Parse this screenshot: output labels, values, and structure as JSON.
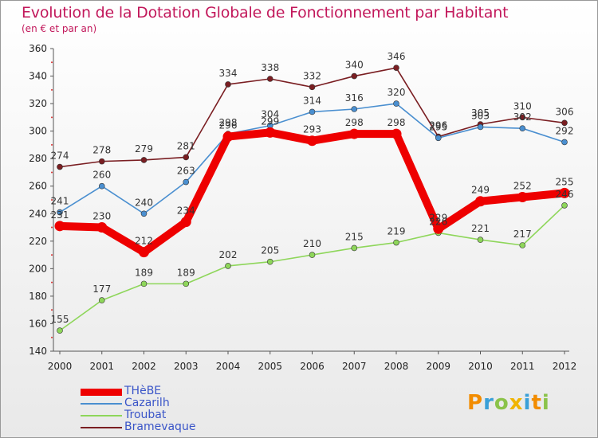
{
  "title": "Evolution de la Dotation Globale de Fonctionnement par Habitant",
  "subtitle": "(en € et par an)",
  "logo": {
    "letters": [
      "P",
      "r",
      "o",
      "x",
      "i",
      "t",
      "i"
    ],
    "colors": [
      "#f28c00",
      "#3aa0d8",
      "#8bc34a",
      "#f0b400",
      "#3aa0d8",
      "#f28c00",
      "#8bc34a"
    ]
  },
  "chart_data": {
    "type": "line",
    "title": "Evolution de la Dotation Globale de Fonctionnement par Habitant",
    "subtitle": "(en € et par an)",
    "x": [
      "2000",
      "2001",
      "2002",
      "2003",
      "2004",
      "2005",
      "2006",
      "2007",
      "2008",
      "2009",
      "2010",
      "2011",
      "2012"
    ],
    "ylim": [
      140,
      360
    ],
    "yticks": [
      140,
      160,
      180,
      200,
      220,
      240,
      260,
      280,
      300,
      320,
      340,
      360
    ],
    "grid": false,
    "legend_position": "bottom-left",
    "series": [
      {
        "name": "Bramevaque",
        "color": "#7a1e22",
        "values": [
          274,
          278,
          279,
          281,
          334,
          338,
          332,
          340,
          346,
          296,
          305,
          310,
          306
        ],
        "labels": [
          "274",
          "278",
          "279",
          "281",
          "334",
          "338",
          "332",
          "340",
          "346",
          "296",
          "305",
          "310",
          "306"
        ]
      },
      {
        "name": "Cazarilh",
        "color": "#4a8fd0",
        "values": [
          241,
          260,
          240,
          263,
          298,
          304,
          314,
          316,
          320,
          295,
          303,
          302,
          292
        ],
        "labels": [
          "241",
          "260",
          "240",
          "263",
          "298",
          "304",
          "314",
          "316",
          "320",
          "295",
          "303",
          "302",
          "292"
        ]
      },
      {
        "name": "Troubat",
        "color": "#8ed65a",
        "values": [
          155,
          177,
          189,
          189,
          202,
          205,
          210,
          215,
          219,
          226,
          221,
          217,
          246
        ],
        "labels": [
          "155",
          "177",
          "189",
          "189",
          "202",
          "205",
          "210",
          "215",
          "219",
          "226",
          "221",
          "217",
          "246"
        ]
      },
      {
        "name": "THèBE",
        "color": "#ee0000",
        "values": [
          231,
          230,
          212,
          234,
          296,
          299,
          293,
          298,
          298,
          229,
          249,
          252,
          255
        ],
        "labels": [
          "231",
          "230",
          "212",
          "234",
          "296",
          "299",
          "293",
          "298",
          "298",
          "229",
          "249",
          "252",
          "255"
        ]
      }
    ],
    "legend": [
      "THèBE",
      "Cazarilh",
      "Troubat",
      "Bramevaque"
    ]
  }
}
